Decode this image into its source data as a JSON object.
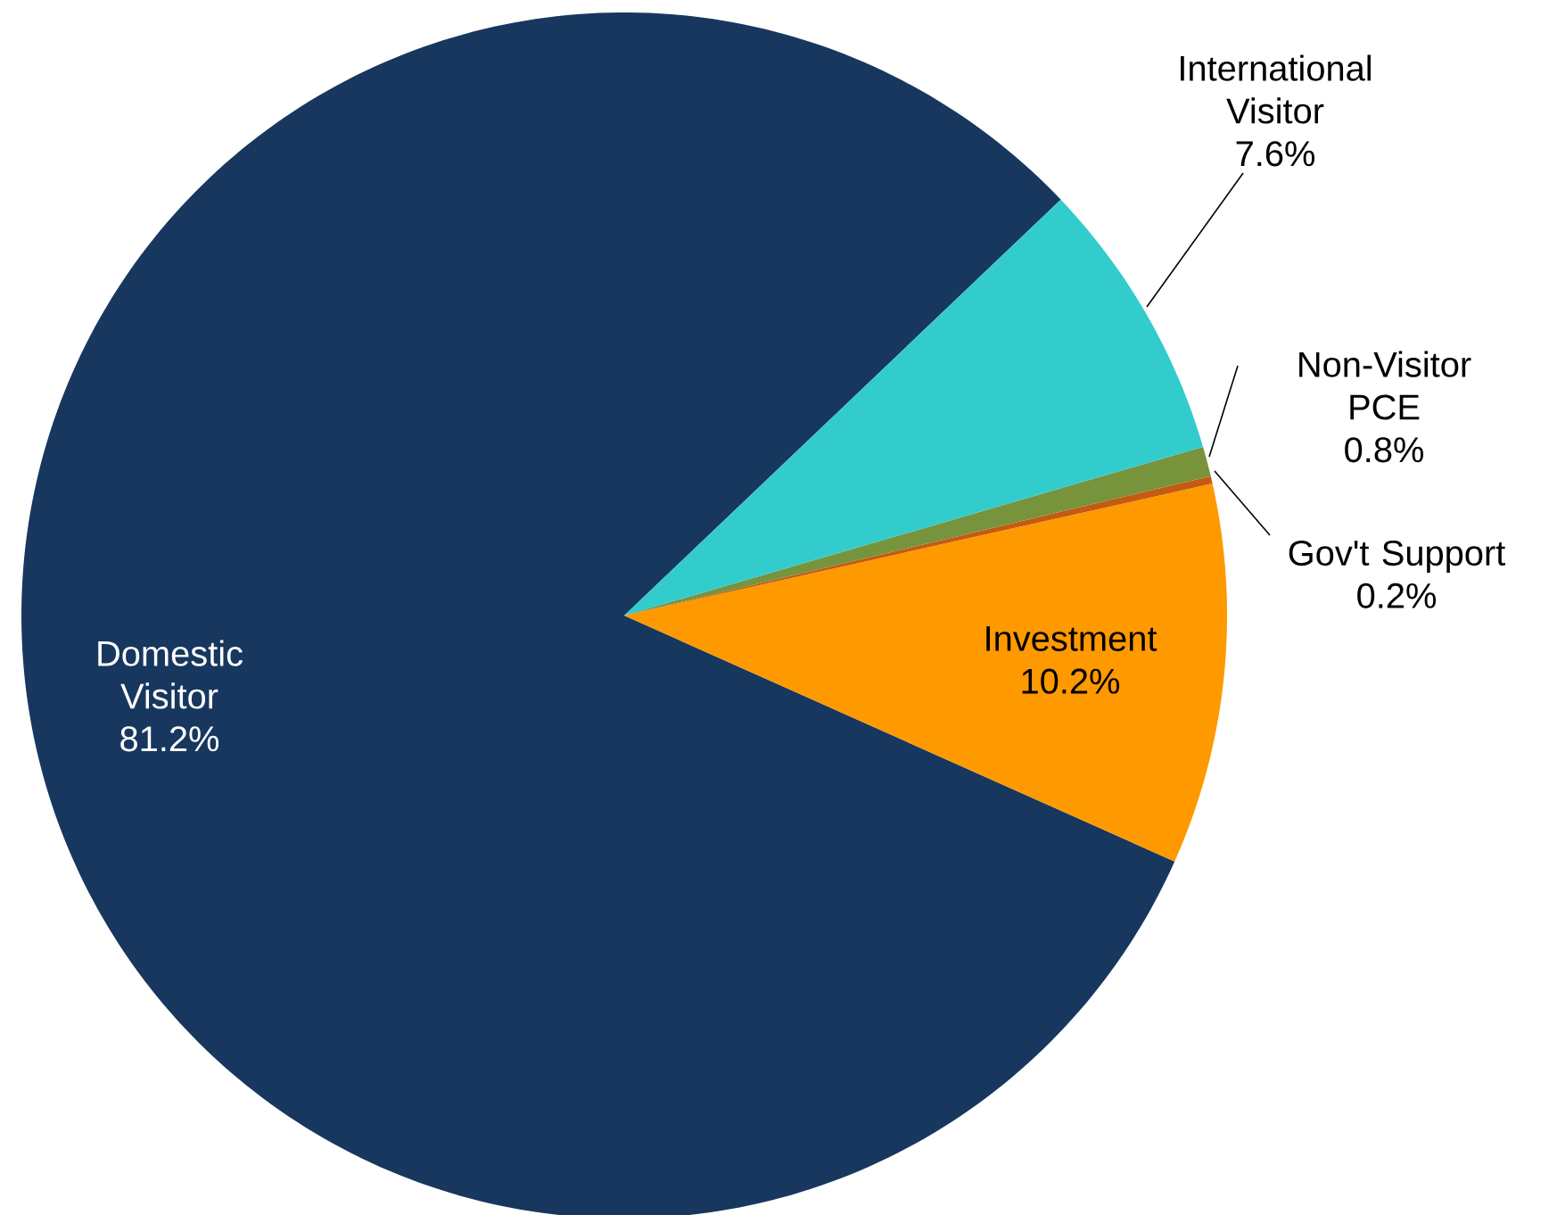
{
  "chart_data": {
    "type": "pie",
    "categories": [
      "Domestic Visitor",
      "Investment",
      "Gov't Support",
      "Non-Visitor PCE",
      "International Visitor"
    ],
    "values": [
      81.2,
      10.2,
      0.2,
      0.8,
      7.6
    ],
    "value_labels": [
      "81.2%",
      "10.2%",
      "0.2%",
      "0.8%",
      "7.6%"
    ],
    "colors": [
      "#17375e",
      "#ff9900",
      "#c55a11",
      "#77933c",
      "#33cccc"
    ]
  }
}
